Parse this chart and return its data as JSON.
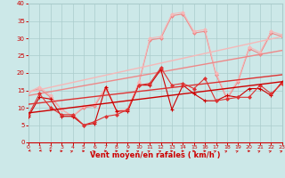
{
  "xlabel": "Vent moyen/en rafales ( km/h )",
  "xlim": [
    0,
    23
  ],
  "ylim": [
    0,
    40
  ],
  "yticks": [
    0,
    5,
    10,
    15,
    20,
    25,
    30,
    35,
    40
  ],
  "xticks": [
    0,
    1,
    2,
    3,
    4,
    5,
    6,
    7,
    8,
    9,
    10,
    11,
    12,
    13,
    14,
    15,
    16,
    17,
    18,
    19,
    20,
    21,
    22,
    23
  ],
  "bg_color": "#cce8e8",
  "grid_color": "#aacccc",
  "c_dark": "#cc0000",
  "c_mid": "#dd3333",
  "c_light": "#ee8888",
  "c_vlight": "#f5b8b8",
  "series1_y": [
    7.5,
    13.0,
    12.5,
    7.5,
    7.5,
    5.0,
    5.5,
    16.0,
    9.0,
    9.0,
    16.5,
    16.5,
    21.0,
    9.5,
    16.5,
    14.0,
    12.0,
    12.0,
    13.5,
    13.0,
    15.5,
    15.5,
    13.5,
    17.5
  ],
  "series2_y": [
    8.0,
    14.0,
    10.0,
    8.0,
    8.0,
    5.0,
    6.0,
    7.5,
    8.0,
    9.5,
    16.5,
    17.0,
    21.5,
    16.5,
    17.0,
    15.5,
    18.5,
    12.0,
    12.5,
    13.0,
    13.0,
    16.5,
    14.0,
    17.0
  ],
  "series3_y": [
    14.5,
    15.5,
    13.0,
    9.5,
    7.5,
    10.0,
    10.5,
    15.5,
    9.0,
    9.5,
    17.0,
    29.5,
    30.0,
    36.5,
    37.0,
    31.5,
    32.0,
    19.5,
    12.5,
    17.5,
    27.0,
    25.5,
    31.5,
    30.5
  ],
  "series4_y": [
    14.5,
    16.0,
    13.5,
    9.5,
    7.5,
    10.5,
    11.0,
    16.0,
    9.0,
    9.5,
    17.5,
    30.0,
    30.5,
    37.0,
    37.5,
    32.0,
    32.5,
    20.0,
    13.0,
    18.0,
    27.5,
    26.0,
    32.0,
    31.0
  ],
  "trend1": [
    8.5,
    17.5
  ],
  "trend2": [
    11.0,
    19.5
  ],
  "trend3": [
    14.5,
    30.5
  ],
  "trend4": [
    13.5,
    26.5
  ],
  "arrows_angle": [
    225,
    225,
    270,
    0,
    45,
    0,
    45,
    0,
    0,
    0,
    45,
    45,
    45,
    0,
    0,
    0,
    0,
    45,
    45,
    45,
    0,
    45,
    45,
    45
  ]
}
